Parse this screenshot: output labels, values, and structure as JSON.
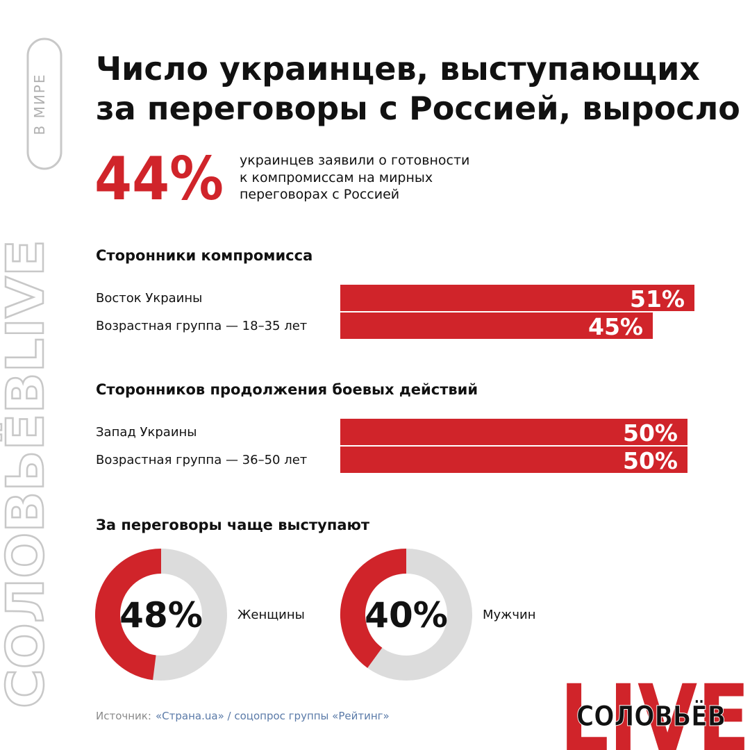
{
  "side_label": "В МИРЕ",
  "brand_vertical": "СОЛОВЬЁВLIVE",
  "title_lines": [
    "Число украинцев, выступающих",
    "за переговоры с Россией, выросло"
  ],
  "headline": {
    "label": "44%",
    "text_lines": [
      "украинцев заявили о готовности",
      "к компромиссам на мирных",
      "переговорах с Россией"
    ]
  },
  "chart_data": [
    {
      "type": "bar",
      "title": "Сторонники компромисса",
      "categories": [
        "Восток Украины",
        "Возрастная группа — 18–35 лет"
      ],
      "values": [
        51,
        45
      ],
      "value_labels": [
        "51%",
        "45%"
      ],
      "color": "#d0242a"
    },
    {
      "type": "bar",
      "title": "Сторонников продолжения боевых действий",
      "categories": [
        "Запад Украины",
        "Возрастная группа — 36–50 лет"
      ],
      "values": [
        50,
        50
      ],
      "value_labels": [
        "50%",
        "50%"
      ],
      "color": "#d0242a"
    },
    {
      "type": "donut",
      "title": "За переговоры чаще выступают",
      "categories": [
        "Женщины",
        "Мужчин"
      ],
      "values": [
        48,
        40
      ],
      "value_labels": [
        "48%",
        "40%"
      ],
      "color": "#d0242a",
      "track_color": "#dcdcdc"
    }
  ],
  "source": {
    "prefix": "Источник:",
    "text": "«Страна.ua» / соцопрос группы «Рейтинг»"
  },
  "logo": {
    "big": "LIVE",
    "name": "СОЛОВЬЁВ"
  }
}
